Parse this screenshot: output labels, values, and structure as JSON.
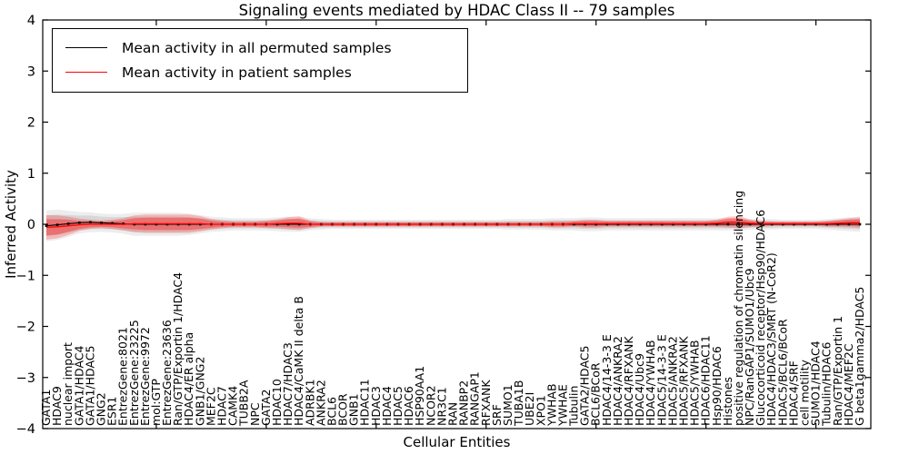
{
  "figure": {
    "title": "Signaling events mediated by HDAC Class II -- 79 samples",
    "xlabel": "Cellular Entities",
    "ylabel": "Inferred Activity"
  },
  "legend": {
    "items": [
      {
        "label": "Mean activity in all permuted samples",
        "color": "#000000"
      },
      {
        "label": "Mean activity in patient samples",
        "color": "#ff0000"
      }
    ]
  },
  "colors": {
    "permuted_line": "#000000",
    "patient_line": "#ff0000",
    "permuted_band": "#999999",
    "patient_band": "#ff0000",
    "axis": "#000000",
    "background": "#ffffff"
  },
  "chart_data": {
    "type": "line",
    "title": "Signaling events mediated by HDAC Class II -- 79 samples",
    "xlabel": "Cellular Entities",
    "ylabel": "Inferred Activity",
    "ylim": [
      -4,
      4
    ],
    "ytick_labels": [
      "4",
      "3",
      "2",
      "1",
      "0",
      "−1",
      "−2",
      "−3",
      "−4"
    ],
    "yticks": [
      4,
      3,
      2,
      1,
      0,
      -1,
      -2,
      -3,
      -4
    ],
    "x_major_tick_every": 10,
    "grid": false,
    "legend_position": "upper left",
    "categories": [
      "GATA1",
      "HDAC9",
      "nuclear import",
      "GATA1/HDAC4",
      "GATA1/HDAC5",
      "GNG2",
      "ESR1",
      "EntrezGene:8021",
      "EntrezGene:23225",
      "EntrezGene:9972",
      "mol:GTP",
      "EntrezGene:23636",
      "Ran/GTP/Exportin 1/HDAC4",
      "HDAC4/ER alpha",
      "GNB1/GNG2",
      "MEF2C",
      "HDAC7",
      "CAMK4",
      "TUBB2A",
      "NPC",
      "GATA2",
      "HDAC10",
      "HDAC7/HDAC3",
      "HDAC4/CaMK II delta B",
      "ADRBK1",
      "ANKRA2",
      "BCL6",
      "BCOR",
      "GNB1",
      "HDAC11",
      "HDAC3",
      "HDAC4",
      "HDAC5",
      "HDAC6",
      "HSP90AA1",
      "NCOR2",
      "NR3C1",
      "RAN",
      "RANBP2",
      "RANGAP1",
      "RFXANK",
      "SRF",
      "SUMO1",
      "TUBA1B",
      "UBE2I",
      "XPO1",
      "YWHAB",
      "YWHAE",
      "Tubulin",
      "GATA2/HDAC5",
      "BCL6/BCoR",
      "HDAC4/14-3-3 E",
      "HDAC4/ANKRA2",
      "HDAC4/RFXANK",
      "HDAC4/Ubc9",
      "HDAC4/YWHAB",
      "HDAC5/14-3-3 E",
      "HDAC5/ANKRA2",
      "HDAC5/RFXANK",
      "HDAC5/YWHAB",
      "HDAC6/HDAC11",
      "Hsp90/HDAC6",
      "Histones",
      "positive regulation of chromatin silencing",
      "NPC/RanGAP1/SUMO1/Ubc9",
      "Glucocorticoid receptor/Hsp90/HDAC6",
      "HDAC4/HDAC3/SMRT (N-CoR2)",
      "HDAC5/BCL6/BCoR",
      "HDAC4/SRF",
      "cell motility",
      "SUMO1/HDAC4",
      "Tubulin/HDAC6",
      "Ran/GTP/Exportin 1",
      "HDAC4/MEF2C",
      "G beta1gamma2/HDAC5"
    ],
    "series": [
      {
        "name": "Mean activity in all permuted samples",
        "color": "#000000",
        "values": [
          -0.03,
          -0.01,
          0.01,
          0.03,
          0.04,
          0.03,
          0.02,
          0.01,
          0,
          0,
          0,
          0,
          0,
          0,
          0,
          0,
          0,
          0,
          0,
          0,
          0,
          0,
          0,
          0,
          0,
          0,
          0,
          0,
          0,
          0,
          0,
          0,
          0,
          0,
          0,
          0,
          0,
          0,
          0,
          0,
          0,
          0,
          0,
          0,
          0,
          0,
          0,
          0,
          0,
          0,
          0,
          0,
          0,
          0,
          0,
          0,
          0,
          0,
          0,
          0,
          0,
          0,
          0,
          0,
          0,
          0,
          0,
          0,
          0,
          0,
          0,
          0,
          0,
          0,
          0
        ],
        "band_halfwidth": [
          0.2,
          0.2,
          0.17,
          0.14,
          0.13,
          0.12,
          0.12,
          0.13,
          0.15,
          0.15,
          0.15,
          0.15,
          0.15,
          0.14,
          0.12,
          0.1,
          0.09,
          0.08,
          0.08,
          0.08,
          0.08,
          0.09,
          0.1,
          0.1,
          0.08,
          0.07,
          0.06,
          0.06,
          0.06,
          0.06,
          0.06,
          0.06,
          0.06,
          0.06,
          0.06,
          0.06,
          0.06,
          0.06,
          0.06,
          0.06,
          0.06,
          0.06,
          0.07,
          0.07,
          0.07,
          0.07,
          0.08,
          0.08,
          0.08,
          0.09,
          0.09,
          0.08,
          0.08,
          0.08,
          0.08,
          0.08,
          0.08,
          0.08,
          0.08,
          0.08,
          0.08,
          0.08,
          0.08,
          0.08,
          0.07,
          0.07,
          0.07,
          0.06,
          0.06,
          0.06,
          0.06,
          0.07,
          0.08,
          0.09,
          0.1
        ]
      },
      {
        "name": "Mean activity in patient samples",
        "color": "#ff0000",
        "values": [
          -0.06,
          -0.05,
          -0.03,
          -0.01,
          0,
          0,
          0,
          0,
          0.01,
          0.01,
          0.01,
          0.01,
          0.01,
          0.01,
          0.01,
          0,
          0,
          0,
          0,
          0,
          0,
          0.01,
          0.02,
          0.02,
          0,
          0,
          0,
          0,
          0,
          0,
          0,
          0,
          0,
          0,
          0,
          0,
          0,
          0,
          0,
          0,
          0,
          0,
          0,
          0,
          0,
          0,
          0,
          0,
          0.01,
          0.01,
          0.01,
          0.01,
          0.01,
          0.01,
          0.01,
          0.01,
          0.01,
          0.01,
          0.01,
          0.01,
          0.01,
          0.02,
          0.04,
          0.04,
          0.02,
          0.01,
          0.01,
          0.01,
          0.01,
          0.01,
          0.01,
          0.01,
          0.02,
          0.03,
          0.03
        ],
        "band_halfwidth": [
          0.16,
          0.15,
          0.12,
          0.08,
          0.06,
          0.05,
          0.06,
          0.08,
          0.11,
          0.12,
          0.12,
          0.12,
          0.12,
          0.12,
          0.1,
          0.07,
          0.05,
          0.04,
          0.04,
          0.04,
          0.05,
          0.06,
          0.08,
          0.09,
          0.05,
          0.03,
          0.03,
          0.03,
          0.03,
          0.03,
          0.03,
          0.03,
          0.03,
          0.03,
          0.03,
          0.03,
          0.03,
          0.03,
          0.03,
          0.03,
          0.03,
          0.03,
          0.03,
          0.03,
          0.03,
          0.03,
          0.04,
          0.04,
          0.04,
          0.05,
          0.05,
          0.04,
          0.04,
          0.04,
          0.04,
          0.04,
          0.04,
          0.04,
          0.04,
          0.04,
          0.04,
          0.05,
          0.07,
          0.08,
          0.05,
          0.04,
          0.03,
          0.03,
          0.03,
          0.03,
          0.03,
          0.04,
          0.05,
          0.06,
          0.07
        ]
      }
    ]
  }
}
